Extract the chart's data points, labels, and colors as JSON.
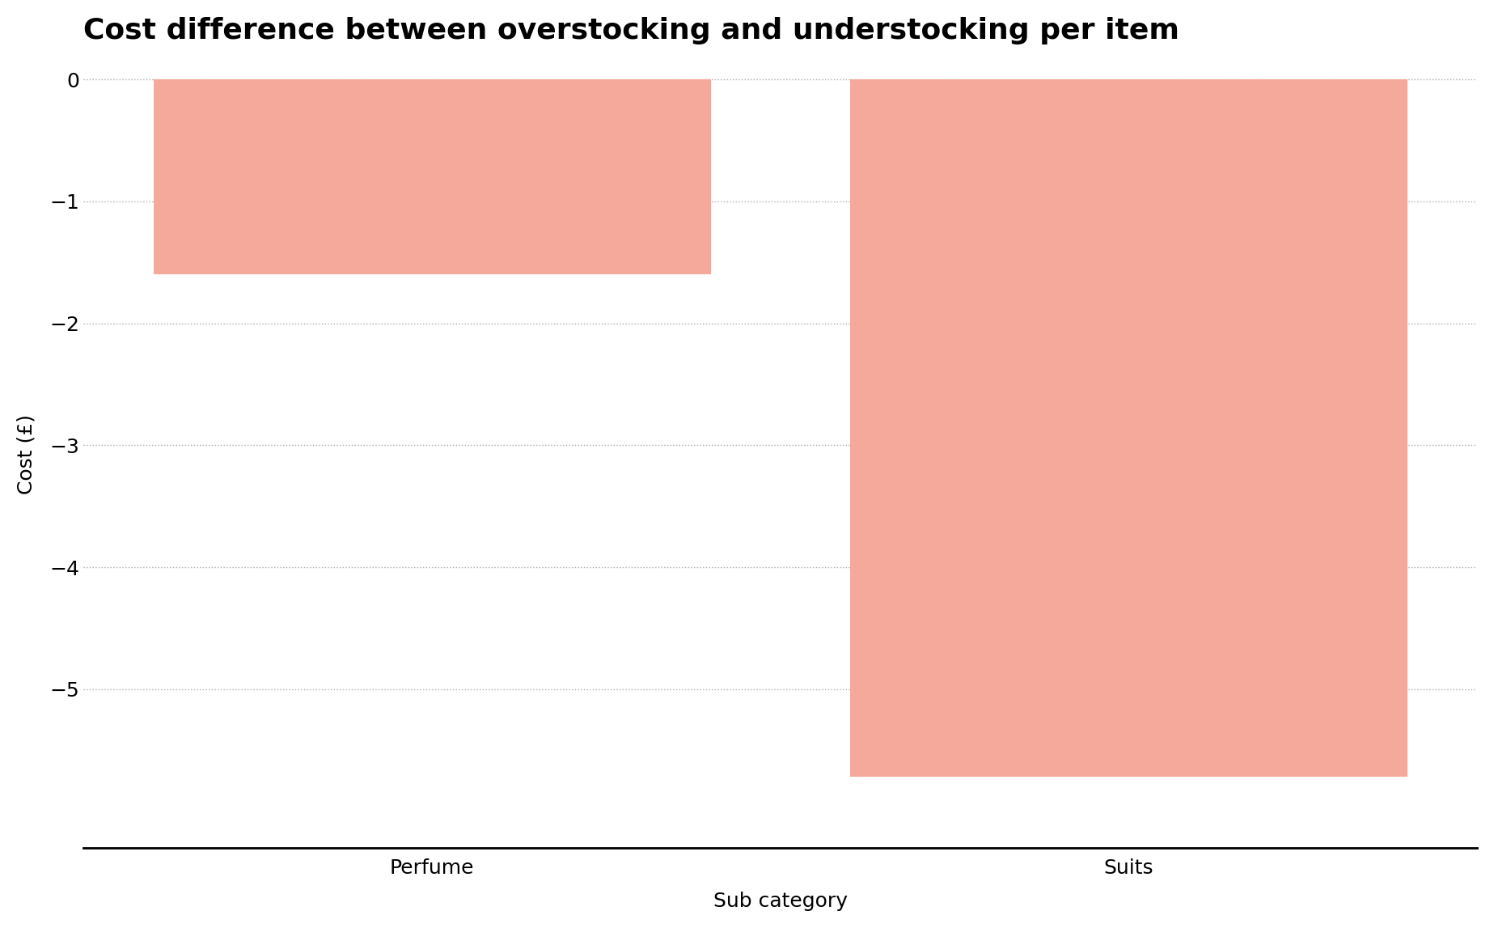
{
  "categories": [
    "Perfume",
    "Suits"
  ],
  "values": [
    -1.6,
    -5.72
  ],
  "bar_color": "#F4A99A",
  "title": "Cost difference between overstocking and understocking per item",
  "xlabel": "Sub category",
  "ylabel": "Cost (£)",
  "ylim": [
    -6.3,
    0.15
  ],
  "yticks": [
    0,
    -1,
    -2,
    -3,
    -4,
    -5
  ],
  "title_fontsize": 26,
  "axis_label_fontsize": 18,
  "tick_fontsize": 18,
  "background_color": "#ffffff",
  "bar_width": 0.8,
  "xlim": [
    -0.5,
    1.5
  ]
}
